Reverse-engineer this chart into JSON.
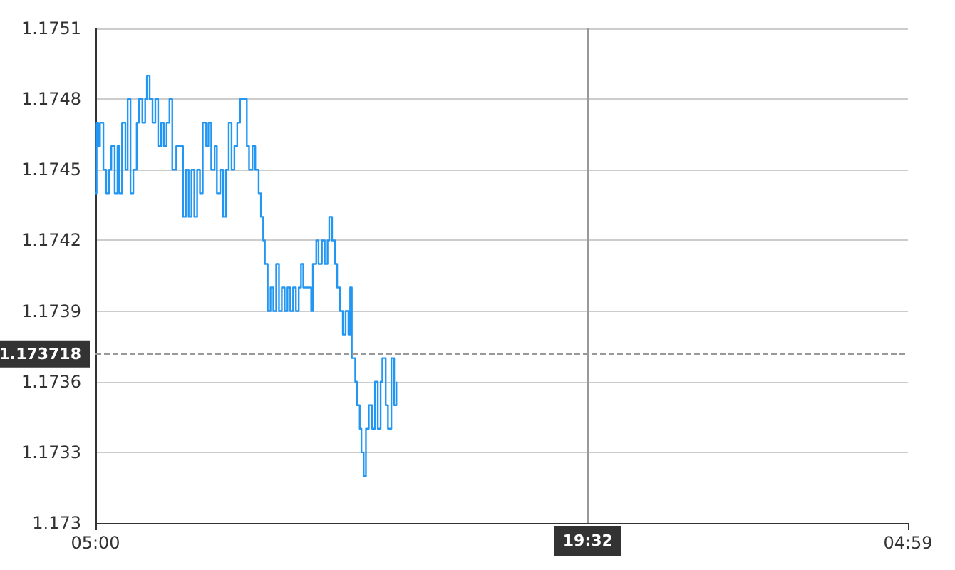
{
  "chart_data": {
    "type": "step",
    "xlim": [
      "--01-01T05:00",
      "--01-02T04:59"
    ],
    "xticks": [
      {
        "value": "--01-01T05:00",
        "label": "05:00"
      },
      {
        "value": "--01-02T04:59",
        "label": "04:59"
      }
    ],
    "ylim": [
      1.173,
      1.1751
    ],
    "yticks": [
      1.173,
      1.1733,
      1.1736,
      1.1739,
      1.1742,
      1.1745,
      1.1748,
      1.1751
    ],
    "grid": "y",
    "marker": "none",
    "line_style": "solid",
    "series": [
      {
        "color": "#2196f3",
        "x": [
          "--01-01T05:00",
          "--01-01T05:02",
          "--01-01T05:05",
          "--01-01T05:08",
          "--01-01T05:14",
          "--01-01T05:19",
          "--01-01T05:24",
          "--01-01T05:28",
          "--01-01T05:34",
          "--01-01T05:39",
          "--01-01T05:42",
          "--01-01T05:47",
          "--01-01T05:53",
          "--01-01T05:57",
          "--01-01T06:02",
          "--01-01T06:07",
          "--01-01T06:13",
          "--01-01T06:17",
          "--01-01T06:23",
          "--01-01T06:28",
          "--01-01T06:31",
          "--01-01T06:36",
          "--01-01T06:41",
          "--01-01T06:46",
          "--01-01T06:51",
          "--01-01T06:56",
          "--01-01T07:01",
          "--01-01T07:06",
          "--01-01T07:11",
          "--01-01T07:16",
          "--01-01T07:23",
          "--01-01T07:30",
          "--01-01T07:35",
          "--01-01T07:40",
          "--01-01T07:45",
          "--01-01T07:50",
          "--01-01T07:55",
          "--01-01T08:00",
          "--01-01T08:05",
          "--01-01T08:10",
          "--01-01T08:16",
          "--01-01T08:20",
          "--01-01T08:25",
          "--01-01T08:31",
          "--01-01T08:35",
          "--01-01T08:41",
          "--01-01T08:46",
          "--01-01T08:51",
          "--01-01T08:56",
          "--01-01T09:01",
          "--01-01T09:06",
          "--01-01T09:11",
          "--01-01T09:16",
          "--01-01T09:19",
          "--01-01T09:28",
          "--01-01T09:32",
          "--01-01T09:38",
          "--01-01T09:43",
          "--01-01T09:49",
          "--01-01T09:53",
          "--01-01T09:57",
          "--01-01T10:00",
          "--01-01T10:05",
          "--01-01T10:10",
          "--01-01T10:15",
          "--01-01T10:20",
          "--01-01T10:25",
          "--01-01T10:30",
          "--01-01T10:35",
          "--01-01T10:40",
          "--01-01T10:45",
          "--01-01T10:50",
          "--01-01T10:55",
          "--01-01T11:00",
          "--01-01T11:04",
          "--01-01T11:08",
          "--01-01T11:14",
          "--01-01T11:22",
          "--01-01T11:25",
          "--01-01T11:31",
          "--01-01T11:35",
          "--01-01T11:41",
          "--01-01T11:46",
          "--01-01T11:51",
          "--01-01T11:54",
          "--01-01T11:59",
          "--01-01T12:04",
          "--01-01T12:08",
          "--01-01T12:13",
          "--01-01T12:18",
          "--01-01T12:23",
          "--01-01T12:28",
          "--01-01T12:31",
          "--01-01T12:34",
          "--01-01T12:40",
          "--01-01T12:43",
          "--01-01T12:48",
          "--01-01T12:51",
          "--01-01T12:55",
          "--01-01T12:59",
          "--01-01T13:04",
          "--01-01T13:10",
          "--01-01T13:15",
          "--01-01T13:20",
          "--01-01T13:25",
          "--01-01T13:28",
          "--01-01T13:34",
          "--01-01T13:38",
          "--01-01T13:44",
          "--01-01T13:49",
          "--01-01T13:53"
        ],
        "values": [
          1.1744,
          1.1747,
          1.1746,
          1.1747,
          1.1745,
          1.1744,
          1.1745,
          1.1746,
          1.1744,
          1.1746,
          1.1744,
          1.1747,
          1.1745,
          1.1748,
          1.1744,
          1.1745,
          1.1747,
          1.1748,
          1.1747,
          1.1748,
          1.1749,
          1.1748,
          1.1747,
          1.1748,
          1.1746,
          1.1747,
          1.1746,
          1.1747,
          1.1748,
          1.1745,
          1.1746,
          1.1746,
          1.1743,
          1.1745,
          1.1743,
          1.1745,
          1.1743,
          1.1745,
          1.1744,
          1.1747,
          1.1746,
          1.1747,
          1.1745,
          1.1746,
          1.1744,
          1.1745,
          1.1743,
          1.1745,
          1.1747,
          1.1745,
          1.1746,
          1.1747,
          1.1748,
          1.1748,
          1.1746,
          1.1745,
          1.1746,
          1.1745,
          1.1744,
          1.1743,
          1.1742,
          1.1741,
          1.1739,
          1.174,
          1.1739,
          1.1741,
          1.1739,
          1.174,
          1.1739,
          1.174,
          1.1739,
          1.174,
          1.1739,
          1.174,
          1.1741,
          1.174,
          1.174,
          1.1739,
          1.1741,
          1.1742,
          1.1741,
          1.1742,
          1.1741,
          1.1742,
          1.1743,
          1.1742,
          1.1741,
          1.174,
          1.1739,
          1.1738,
          1.1739,
          1.1738,
          1.174,
          1.1737,
          1.1736,
          1.1735,
          1.1734,
          1.1733,
          1.1732,
          1.1734,
          1.1735,
          1.1734,
          1.1736,
          1.1734,
          1.1736,
          1.1737,
          1.1735,
          1.1734,
          1.1737,
          1.1735,
          1.1736
        ]
      }
    ],
    "ref_lines": [
      {
        "axis": "y",
        "value": 1.173718,
        "label": "1.173718",
        "color": "#999999",
        "line_style": "dashed"
      },
      {
        "axis": "x",
        "value": "--01-01T19:32",
        "label": "19:32",
        "color": "#999999",
        "line_style": "solid"
      }
    ]
  }
}
